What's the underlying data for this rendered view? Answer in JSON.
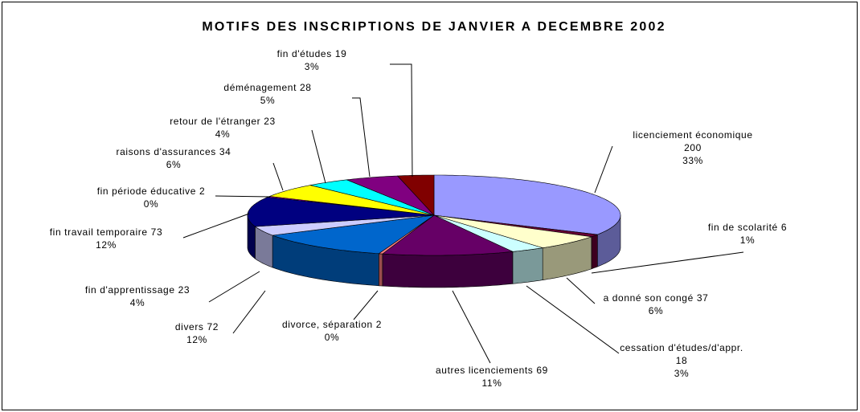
{
  "chart_data": {
    "type": "pie3d",
    "title": "MOTIFS DES INSCRIPTIONS DE JANVIER A DECEMBRE 2002",
    "categories": [
      "licenciement économique",
      "fin de scolarité",
      "a donné son congé",
      "cessation d'études/d'appr.",
      "autres licenciements",
      "divorce, séparation",
      "divers",
      "fin d'apprentissage",
      "fin travail temporaire",
      "fin période éducative",
      "raisons d'assurances",
      "retour de l'étranger",
      "déménagement",
      "fin d'études"
    ],
    "values": [
      200,
      6,
      37,
      18,
      69,
      2,
      72,
      23,
      73,
      2,
      34,
      23,
      28,
      19
    ],
    "percent_labels": [
      "33%",
      "1%",
      "6%",
      "3%",
      "11%",
      "0%",
      "12%",
      "4%",
      "12%",
      "0%",
      "6%",
      "4%",
      "5%",
      "3%"
    ],
    "colors": [
      "#9999ff",
      "#660033",
      "#ffffcc",
      "#ccffff",
      "#660066",
      "#ff8080",
      "#0066cc",
      "#ccccff",
      "#000080",
      "#ff00ff",
      "#ffff00",
      "#00ffff",
      "#800080",
      "#800000"
    ]
  }
}
